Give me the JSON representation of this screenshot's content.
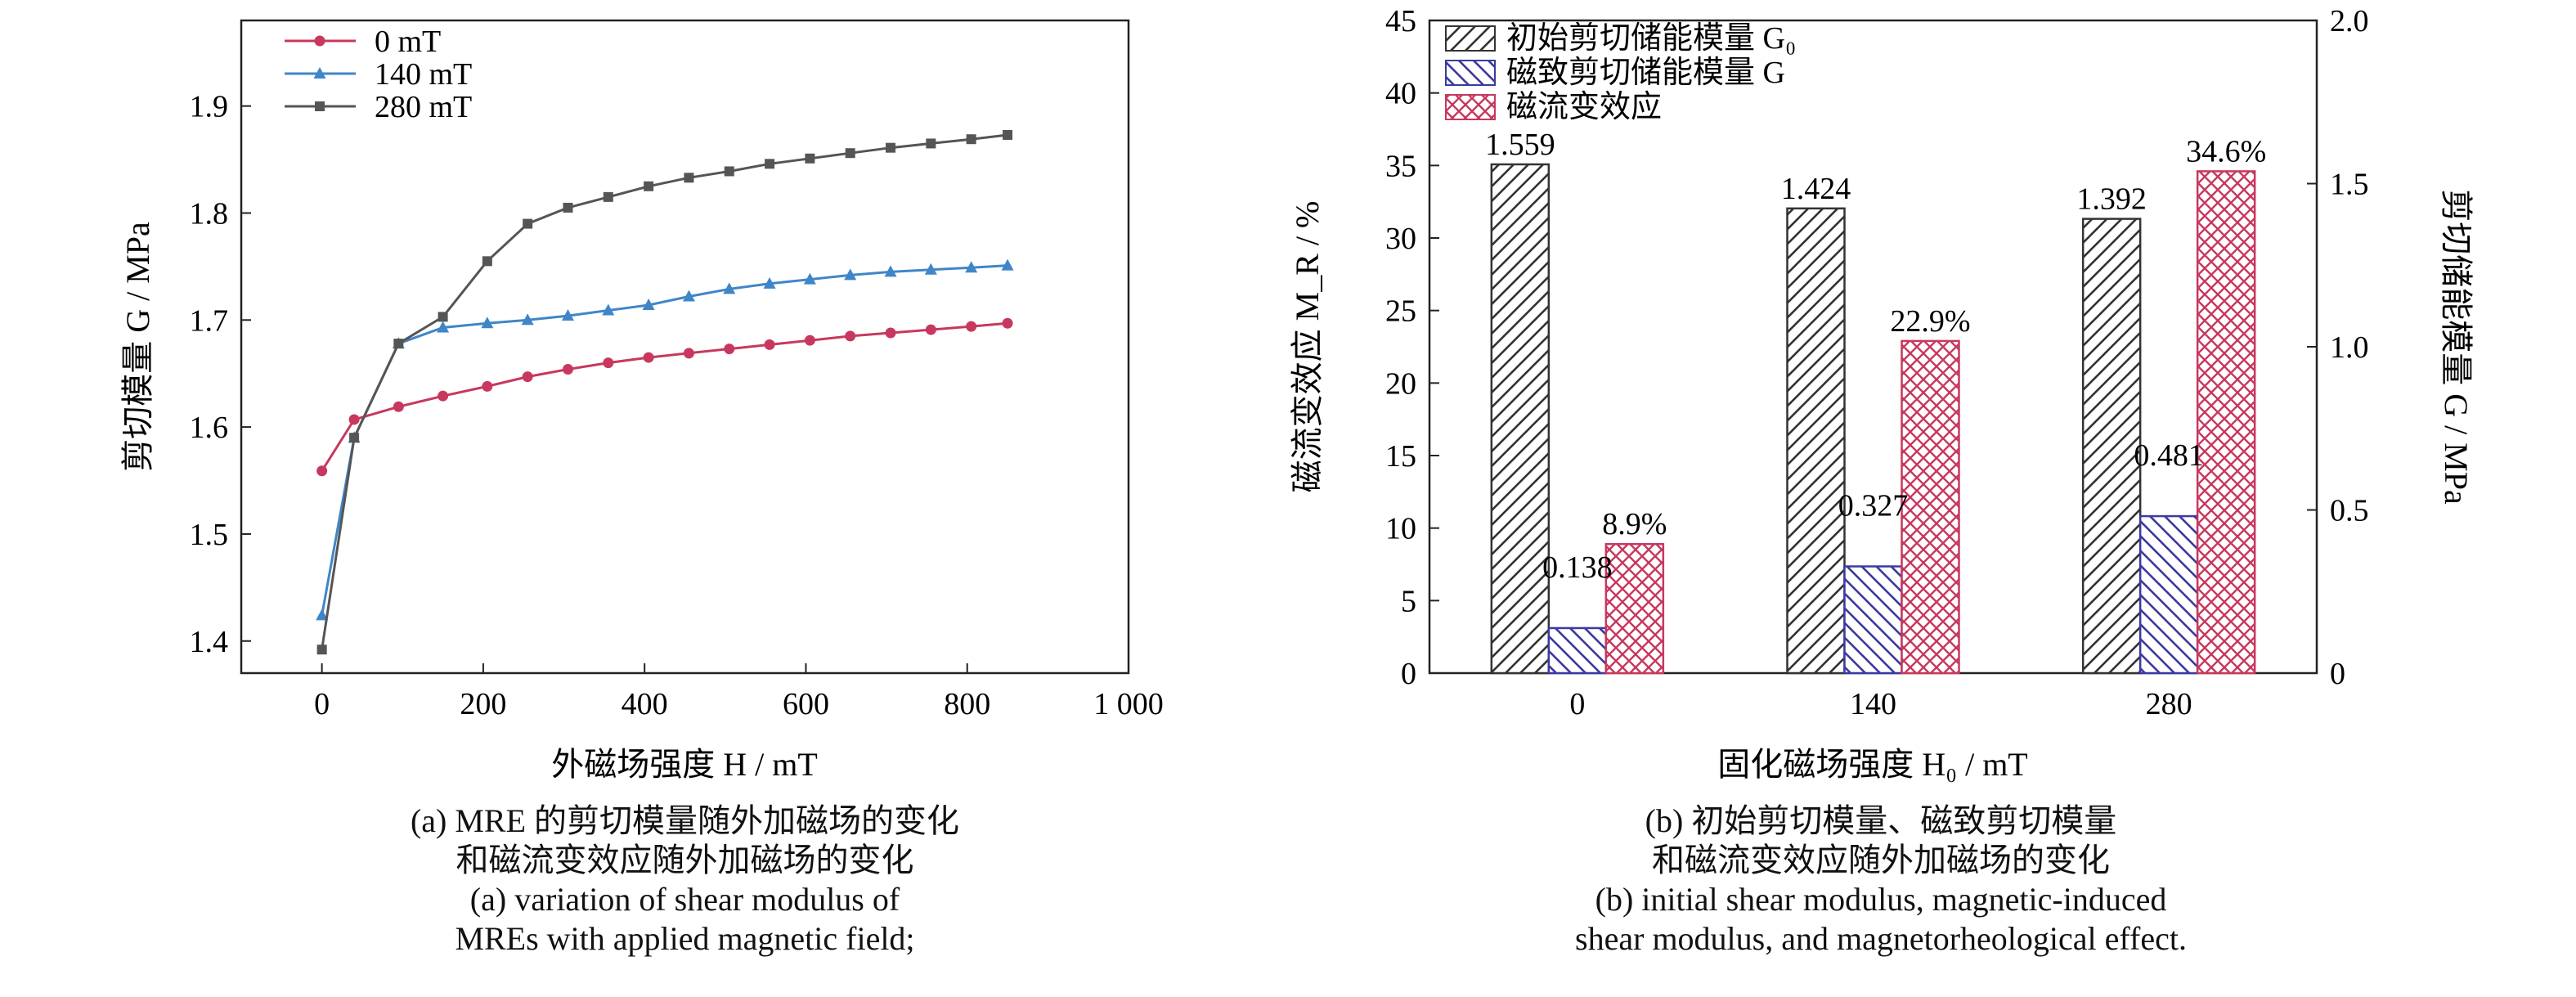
{
  "chart_data": [
    {
      "type": "line",
      "xlabel": "外磁场强度 H / mT",
      "ylabel": "剪切模量 G / MPa",
      "xlim": [
        -100,
        1000
      ],
      "ylim": [
        1.37,
        1.98
      ],
      "xticks": [
        "0",
        "200",
        "400",
        "600",
        "800",
        "1 000"
      ],
      "xtick_values": [
        0,
        200,
        400,
        600,
        800,
        1000
      ],
      "yticks": [
        "1.4",
        "1.5",
        "1.6",
        "1.7",
        "1.8",
        "1.9"
      ],
      "ytick_values": [
        1.4,
        1.5,
        1.6,
        1.7,
        1.8,
        1.9
      ],
      "legend_position": "top-left",
      "series": [
        {
          "name": "0 mT",
          "color": "#c8385e",
          "marker": "circle",
          "points": [
            [
              0,
              1.559
            ],
            [
              40,
              1.607
            ],
            [
              95,
              1.619
            ],
            [
              150,
              1.629
            ],
            [
              205,
              1.638
            ],
            [
              255,
              1.647
            ],
            [
              305,
              1.654
            ],
            [
              355,
              1.66
            ],
            [
              405,
              1.665
            ],
            [
              455,
              1.669
            ],
            [
              505,
              1.673
            ],
            [
              555,
              1.677
            ],
            [
              605,
              1.681
            ],
            [
              655,
              1.685
            ],
            [
              705,
              1.688
            ],
            [
              755,
              1.691
            ],
            [
              805,
              1.694
            ],
            [
              850,
              1.697
            ]
          ]
        },
        {
          "name": "140 mT",
          "color": "#3f86c8",
          "marker": "triangle",
          "points": [
            [
              0,
              1.424
            ],
            [
              40,
              1.59
            ],
            [
              95,
              1.678
            ],
            [
              150,
              1.693
            ],
            [
              205,
              1.697
            ],
            [
              255,
              1.7
            ],
            [
              305,
              1.704
            ],
            [
              355,
              1.709
            ],
            [
              405,
              1.714
            ],
            [
              455,
              1.722
            ],
            [
              505,
              1.729
            ],
            [
              555,
              1.734
            ],
            [
              605,
              1.738
            ],
            [
              655,
              1.742
            ],
            [
              705,
              1.745
            ],
            [
              755,
              1.747
            ],
            [
              805,
              1.749
            ],
            [
              850,
              1.751
            ]
          ]
        },
        {
          "name": "280 mT",
          "color": "#555555",
          "marker": "square",
          "points": [
            [
              0,
              1.392
            ],
            [
              40,
              1.59
            ],
            [
              95,
              1.678
            ],
            [
              150,
              1.703
            ],
            [
              205,
              1.755
            ],
            [
              255,
              1.79
            ],
            [
              305,
              1.805
            ],
            [
              355,
              1.815
            ],
            [
              405,
              1.825
            ],
            [
              455,
              1.833
            ],
            [
              505,
              1.839
            ],
            [
              555,
              1.846
            ],
            [
              605,
              1.851
            ],
            [
              655,
              1.856
            ],
            [
              705,
              1.861
            ],
            [
              755,
              1.865
            ],
            [
              805,
              1.869
            ],
            [
              850,
              1.873
            ]
          ]
        }
      ]
    },
    {
      "type": "bar",
      "xlabel": "固化磁场强度 H₀ / mT",
      "ylabel_left": "磁流变效应 M_R / %",
      "ylabel_right": "剪切储能模量 G / MPa",
      "categories": [
        "0",
        "140",
        "280"
      ],
      "ylim_left": [
        0,
        45
      ],
      "ylim_right": [
        0,
        2.0
      ],
      "yticks_left": [
        "0",
        "5",
        "10",
        "15",
        "20",
        "25",
        "30",
        "35",
        "40",
        "45"
      ],
      "ytick_values_left": [
        0,
        5,
        10,
        15,
        20,
        25,
        30,
        35,
        40,
        45
      ],
      "yticks_right": [
        "0",
        "0.5",
        "1.0",
        "1.5",
        "2.0"
      ],
      "ytick_values_right": [
        0,
        0.5,
        1.0,
        1.5,
        2.0
      ],
      "legend_position": "top-left",
      "series": [
        {
          "name": "初始剪切储能模量 G₀",
          "axis": "right",
          "color": "#333333",
          "pattern": "hatch-left",
          "values": [
            1.559,
            1.424,
            1.392
          ],
          "labels": [
            "1.559",
            "1.424",
            "1.392"
          ]
        },
        {
          "name": "磁致剪切储能模量 G",
          "axis": "right",
          "color": "#3a3aa0",
          "pattern": "hatch-right",
          "values": [
            0.138,
            0.327,
            0.481
          ],
          "labels": [
            "0.138",
            "0.327",
            "0.481"
          ]
        },
        {
          "name": "磁流变效应",
          "axis": "left",
          "color": "#c8385e",
          "pattern": "crosshatch",
          "values": [
            8.9,
            22.9,
            34.6
          ],
          "labels": [
            "8.9%",
            "22.9%",
            "34.6%"
          ]
        }
      ]
    }
  ],
  "captions": {
    "a_cn_1": "(a) MRE 的剪切模量随外加磁场的变化",
    "a_cn_2": "和磁流变效应随外加磁场的变化",
    "a_en_1": "(a) variation of shear modulus of",
    "a_en_2": "MREs with applied magnetic field;",
    "b_cn_1": "(b) 初始剪切模量、磁致剪切模量",
    "b_cn_2": "和磁流变效应随外加磁场的变化",
    "b_en_1": "(b) initial shear modulus, magnetic-induced",
    "b_en_2": "shear modulus, and magnetorheological effect."
  }
}
